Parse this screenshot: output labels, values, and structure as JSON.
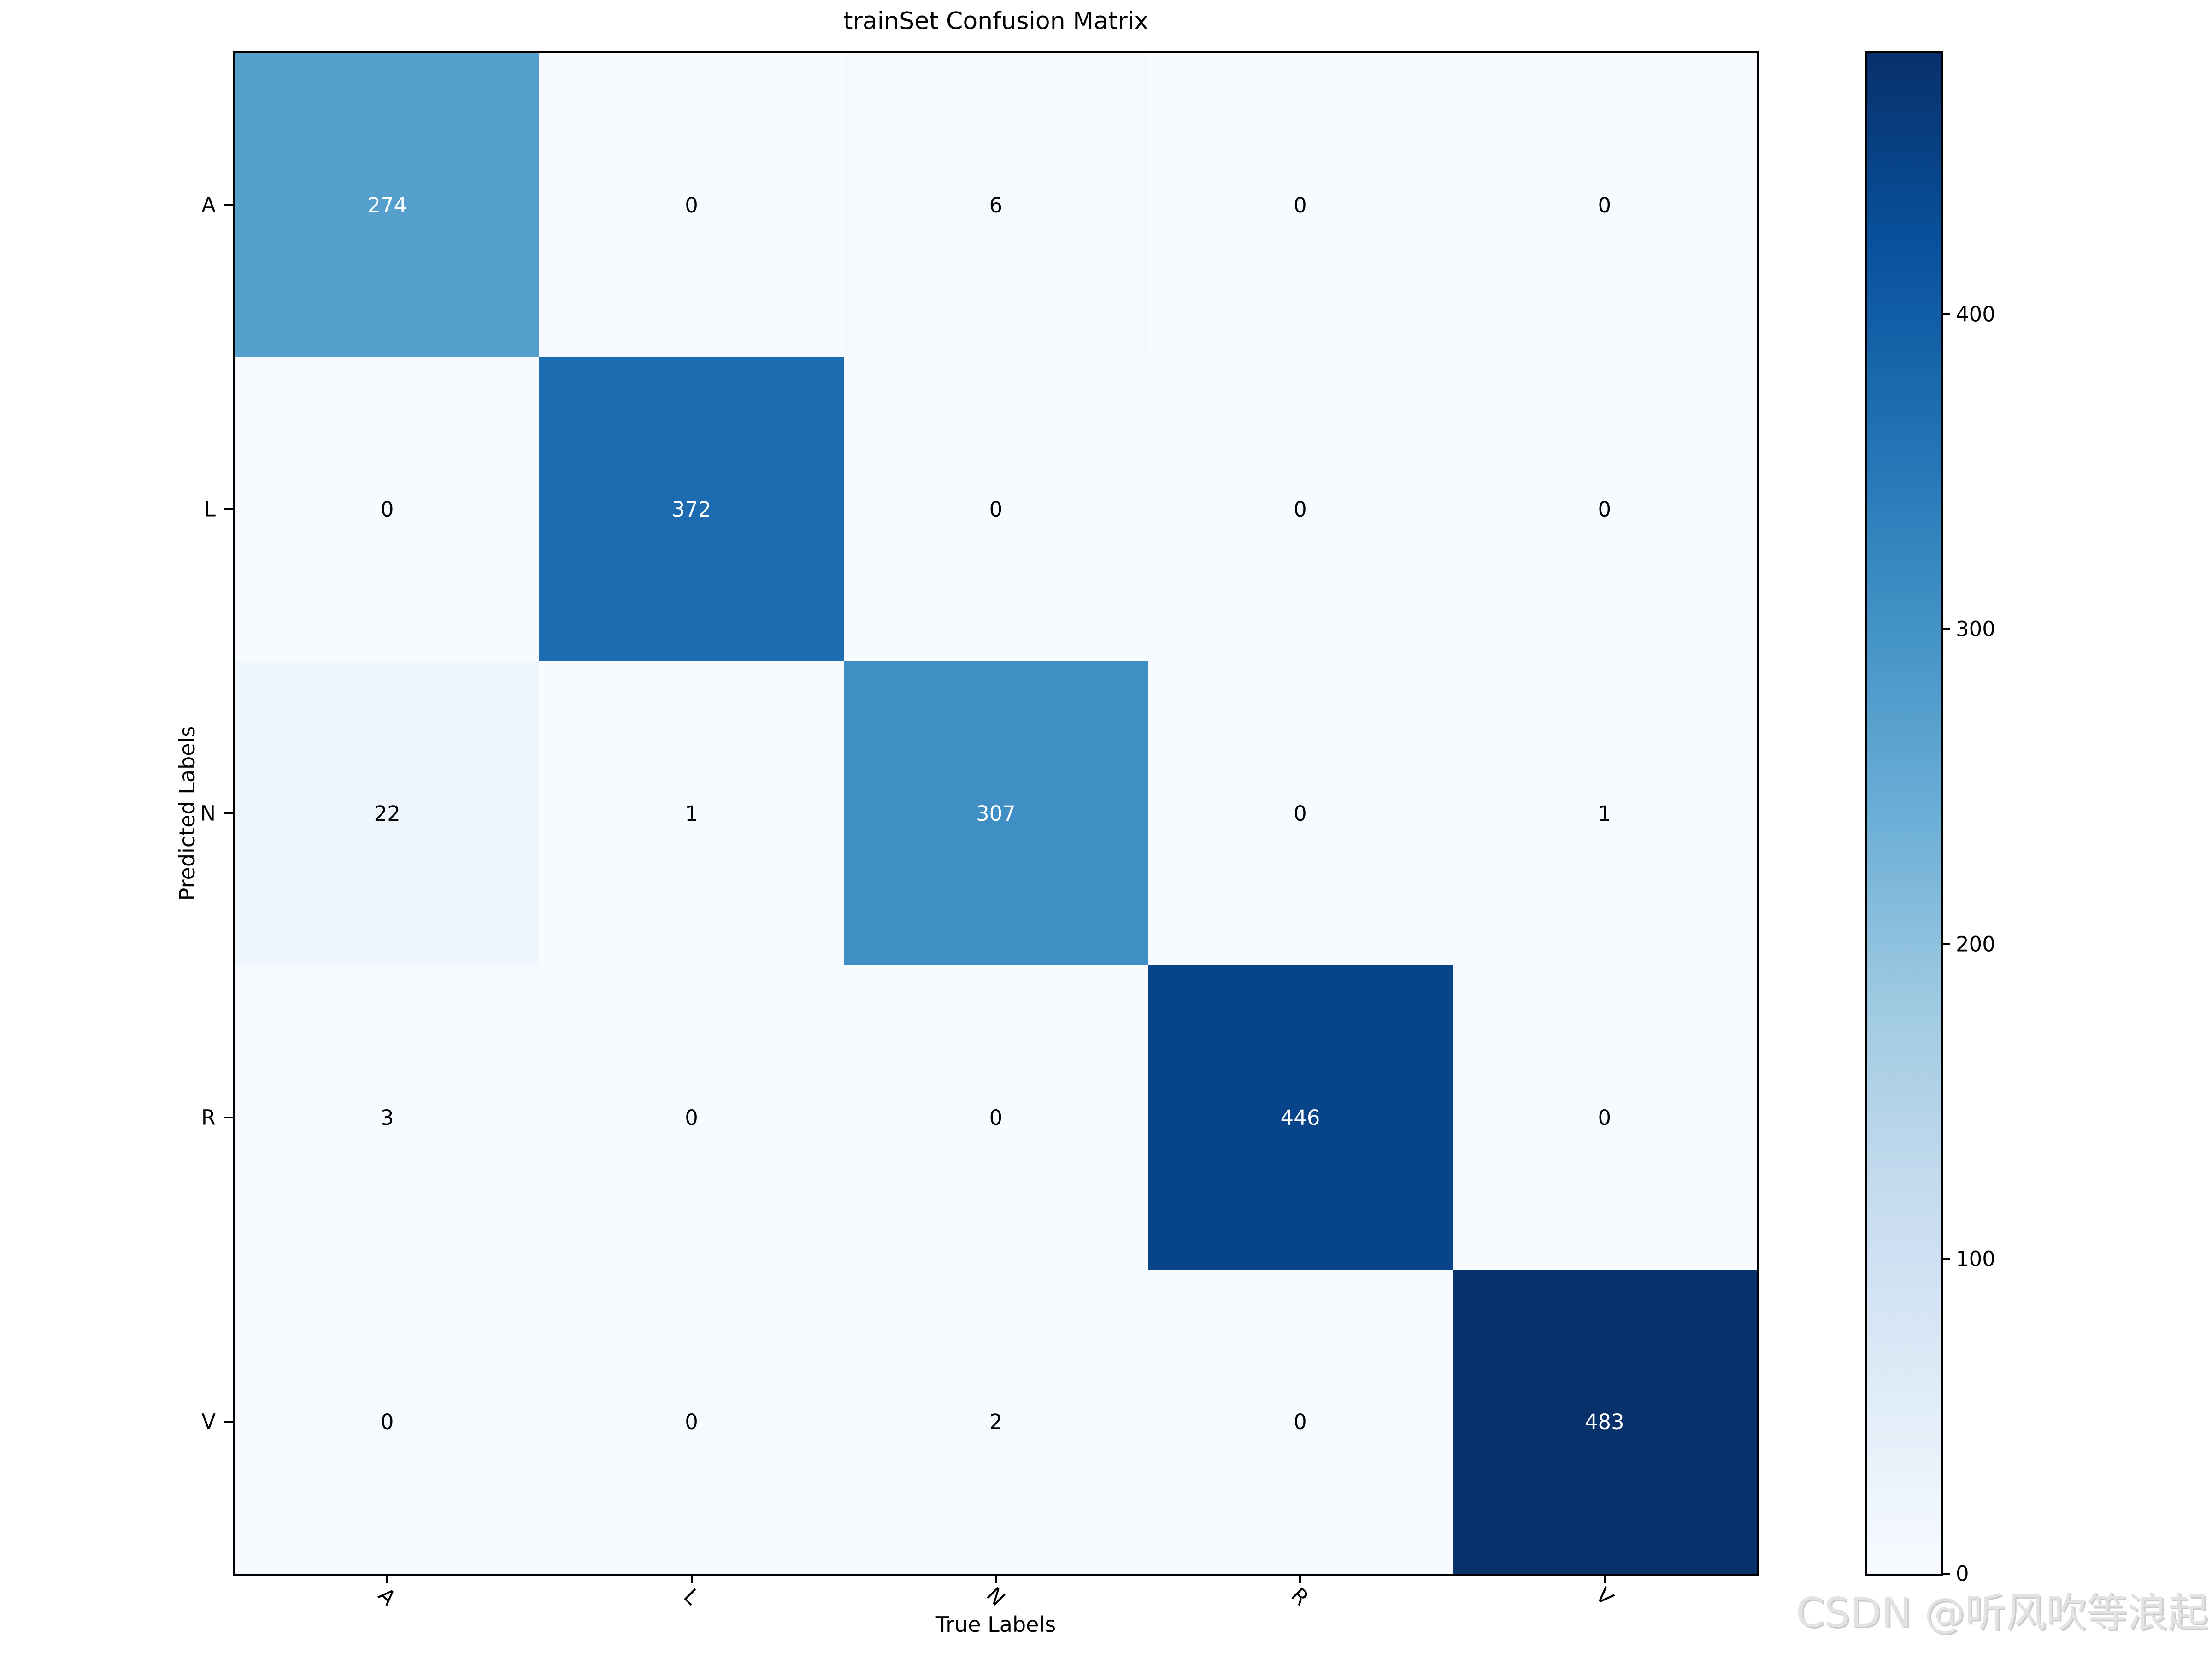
{
  "title": "trainSet Confusion Matrix",
  "watermark": "CSDN @听风吹等浪起",
  "chart_data": {
    "type": "heatmap",
    "title": "trainSet Confusion Matrix",
    "xlabel": "True Labels",
    "ylabel": "Predicted Labels",
    "x_tick_labels": [
      "A",
      "L",
      "N",
      "R",
      "V"
    ],
    "y_tick_labels": [
      "A",
      "L",
      "N",
      "R",
      "V"
    ],
    "matrix": [
      [
        274,
        0,
        6,
        0,
        0
      ],
      [
        0,
        372,
        0,
        0,
        0
      ],
      [
        22,
        1,
        307,
        0,
        1
      ],
      [
        3,
        0,
        0,
        446,
        0
      ],
      [
        0,
        0,
        2,
        0,
        483
      ]
    ],
    "vmin": 0,
    "vmax": 483,
    "colormap": "Blues",
    "colormap_stops": [
      "#f7fbff",
      "#deebf7",
      "#c6dbef",
      "#9ecae1",
      "#6baed6",
      "#4292c6",
      "#2171b5",
      "#08519c",
      "#08306b"
    ],
    "colorbar_ticks": [
      0,
      100,
      200,
      300,
      400
    ],
    "colorbar_position": "right",
    "x_tick_rotation_deg": 45,
    "grid": false,
    "cell_text_color_high": "#ffffff",
    "cell_text_color_low": "#000000"
  }
}
